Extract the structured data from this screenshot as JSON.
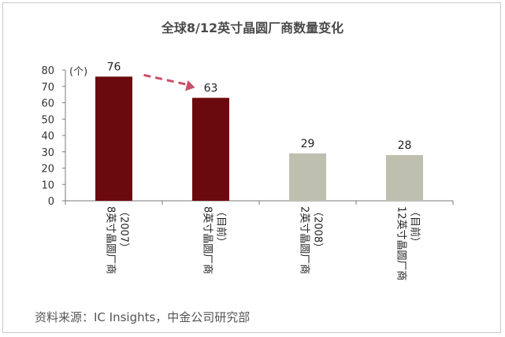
{
  "chart_data": {
    "type": "bar",
    "title": "全球8/12英寸晶圆厂商数量变化",
    "unit_label": "(个)",
    "categories": [
      {
        "line1": "8英寸晶圆厂商",
        "line2": "（2007）"
      },
      {
        "line1": "8英寸晶圆厂商",
        "line2": "（目前）"
      },
      {
        "line1": "2英寸晶圆厂商",
        "line2": "（2008）"
      },
      {
        "line1": "12英寸晶圆厂商",
        "line2": "（目前）"
      }
    ],
    "values": [
      76,
      63,
      29,
      28
    ],
    "data_labels": [
      "76",
      "63",
      "29",
      "28"
    ],
    "bar_colors": [
      "#6b0a0e",
      "#6b0a0e",
      "#bfbfb0",
      "#bfbfb0"
    ],
    "ylim": [
      0,
      80
    ],
    "yticks": [
      "0",
      "10",
      "20",
      "30",
      "40",
      "50",
      "60",
      "70",
      "80"
    ],
    "grid": false,
    "annotation": {
      "type": "dashed-arrow",
      "from_category": 0,
      "to_category": 1,
      "color": "#c8506a"
    }
  },
  "source": "资料来源：IC Insights，中金公司研究部"
}
